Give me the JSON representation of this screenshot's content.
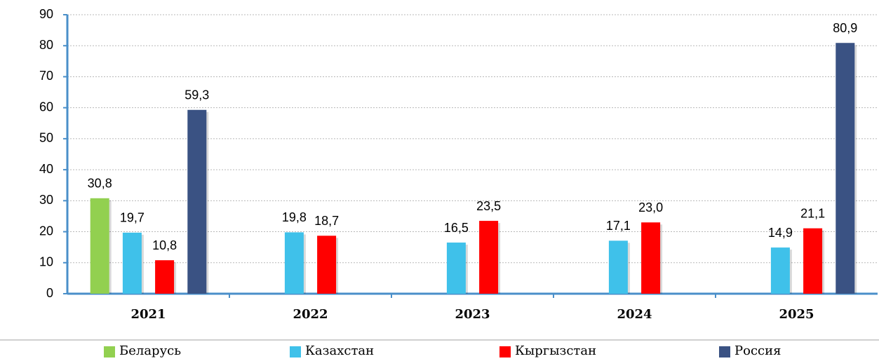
{
  "chart_data": {
    "type": "bar",
    "categories": [
      "2021",
      "2022",
      "2023",
      "2024",
      "2025"
    ],
    "series": [
      {
        "name": "Беларусь",
        "color": "#92d050",
        "values": [
          30.8,
          null,
          null,
          null,
          null
        ],
        "value_labels": [
          "30,8",
          null,
          null,
          null,
          null
        ]
      },
      {
        "name": "Казахстан",
        "color": "#3fc1ea",
        "values": [
          19.7,
          19.8,
          16.5,
          17.1,
          14.9
        ],
        "value_labels": [
          "19,7",
          "19,8",
          "16,5",
          "17,1",
          "14,9"
        ]
      },
      {
        "name": "Кыргызстан",
        "color": "#ff0000",
        "values": [
          10.8,
          18.7,
          23.5,
          23.0,
          21.1
        ],
        "value_labels": [
          "10,8",
          "18,7",
          "23,5",
          "23,0",
          "21,1"
        ]
      },
      {
        "name": "Россия",
        "color": "#3a5283",
        "values": [
          59.3,
          null,
          null,
          null,
          80.9
        ],
        "value_labels": [
          "59,3",
          null,
          null,
          null,
          "80,9"
        ]
      }
    ],
    "ylim": [
      0,
      90
    ],
    "yticks": [
      0,
      10,
      20,
      30,
      40,
      50,
      60,
      70,
      80,
      90
    ],
    "grid": true,
    "legend": "bottom"
  }
}
